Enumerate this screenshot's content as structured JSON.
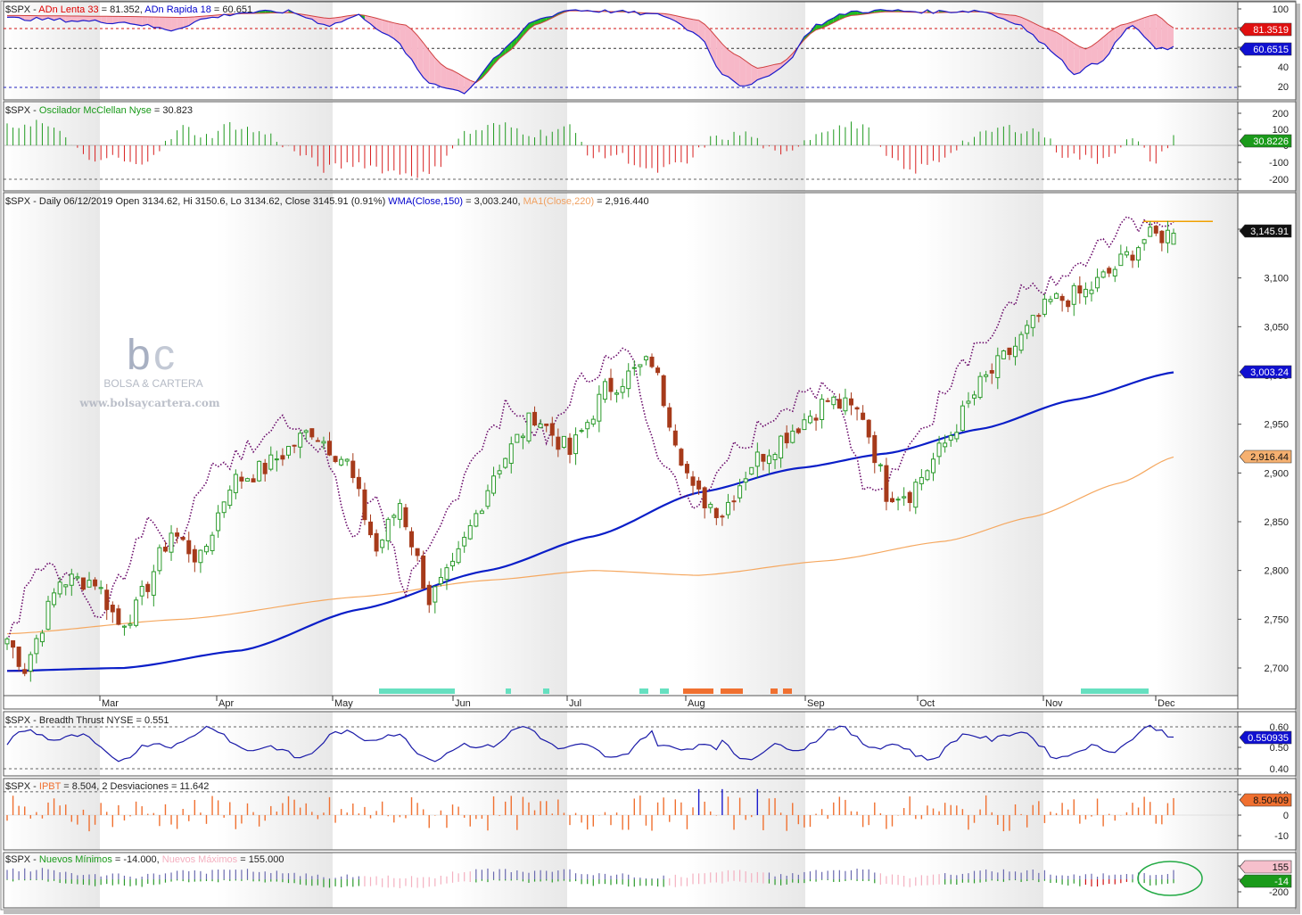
{
  "colors": {
    "up": "#2a9a2a",
    "down": "#a63a1a",
    "wma": "#0a1ec8",
    "ma220": "#f5a860",
    "adn_fast": "#1a1acc",
    "adn_slow_fill": "#f7b8c8",
    "adn_green_fill": "#22bb22",
    "osc_pos": "#1f9a1f",
    "osc_neg": "#d81f1f",
    "breadth": "#1a1aa8",
    "ipbt": "#f07030",
    "ipbt_hi": "#1a1acc",
    "label_red": "#e00000",
    "label_blue": "#0000cc",
    "label_green": "#1a9a1a",
    "label_orange": "#f0a060",
    "label_pink": "#f4b0c0"
  },
  "panels": {
    "adn": {
      "prefix": "$SPX - ",
      "slow_label": "ADn Lenta 33",
      "slow_value": " = 81.352, ",
      "fast_label": "ADn Rapida 18",
      "fast_value": " = 60.651",
      "axis": [
        "100",
        "80",
        "60",
        "40",
        "20"
      ],
      "badge_slow": "81.3519",
      "badge_fast": "60.6515"
    },
    "osc": {
      "prefix": "$SPX - ",
      "label": "Oscilador McClellan Nyse",
      "value": " = 30.823",
      "axis": [
        "200",
        "100",
        "0",
        "-100",
        "-200"
      ],
      "badge": "30.8226"
    },
    "price": {
      "header": "$SPX - Daily 06/12/2019 Open 3134.62, Hi 3150.6, Lo 3134.62, Close 3145.91 (0.91%) ",
      "wma_label": "WMA(Close,150)",
      "wma_value": " = 3,003.240, ",
      "ma_label": "MA1(Close,220)",
      "ma_value": " = 2,916.440",
      "axis": [
        "3,150",
        "3,100",
        "3,050",
        "3,000",
        "2,950",
        "2,900",
        "2,850",
        "2,800",
        "2,750",
        "2,700"
      ],
      "badge_close": "3,145.91",
      "badge_wma": "3,003.24",
      "badge_ma": "2,916.44",
      "months": [
        "Mar",
        "Apr",
        "May",
        "Jun",
        "Jul",
        "Aug",
        "Sep",
        "Oct",
        "Nov",
        "Dec"
      ],
      "watermark_brand": "BOLSA & CARTERA",
      "watermark_url": "www.bolsaycartera.com"
    },
    "breadth": {
      "label": "$SPX - Breadth Thrust NYSE = 0.551",
      "axis": [
        "0.60",
        "0.50",
        "0.40"
      ],
      "badge": "0.550935"
    },
    "ipbt": {
      "prefix": "$SPX - ",
      "label": "IPBT",
      "value": " = 8.504,     2 Desviaciones = 11.642",
      "axis": [
        "10",
        "0",
        "-10"
      ],
      "badge": "8.50409"
    },
    "nm": {
      "prefix": "$SPX - ",
      "min_label": "Nuevos Mínimos",
      "min_value": " = -14.000, ",
      "max_label": "Nuevos Máximos",
      "max_value": " = 155.000",
      "axis": [
        "200",
        "0",
        "-200"
      ],
      "badge_max": "155",
      "badge_min": "-14"
    }
  },
  "chart_data": [
    {
      "type": "line",
      "name": "ADn",
      "series": [
        {
          "name": "ADn Lenta 33"
        },
        {
          "name": "ADn Rapida 18"
        }
      ],
      "ylim": [
        10,
        110
      ]
    },
    {
      "type": "bar",
      "name": "Oscilador McClellan Nyse",
      "ylim": [
        -250,
        250
      ]
    },
    {
      "type": "candlestick",
      "title": "$SPX - Daily 06/12/2019",
      "last": {
        "open": 3134.62,
        "high": 3150.6,
        "low": 3134.62,
        "close": 3145.91,
        "change_pct": 0.91
      },
      "ylim": [
        2680,
        3180
      ],
      "x_months": [
        "Mar",
        "Apr",
        "May",
        "Jun",
        "Jul",
        "Aug",
        "Sep",
        "Oct",
        "Nov",
        "Dec"
      ],
      "series": [
        {
          "name": "WMA(Close,150)",
          "last": 3003.24
        },
        {
          "name": "MA1(Close,220)",
          "last": 2916.44
        }
      ]
    },
    {
      "type": "line",
      "name": "Breadth Thrust NYSE",
      "last": 0.551,
      "ylim": [
        0.38,
        0.64
      ]
    },
    {
      "type": "bar",
      "name": "IPBT",
      "last": 8.504,
      "ylim": [
        -15,
        15
      ]
    },
    {
      "type": "bar",
      "name": "Nuevos Mínimos / Nuevos Máximos",
      "ylim": [
        -300,
        300
      ]
    }
  ]
}
